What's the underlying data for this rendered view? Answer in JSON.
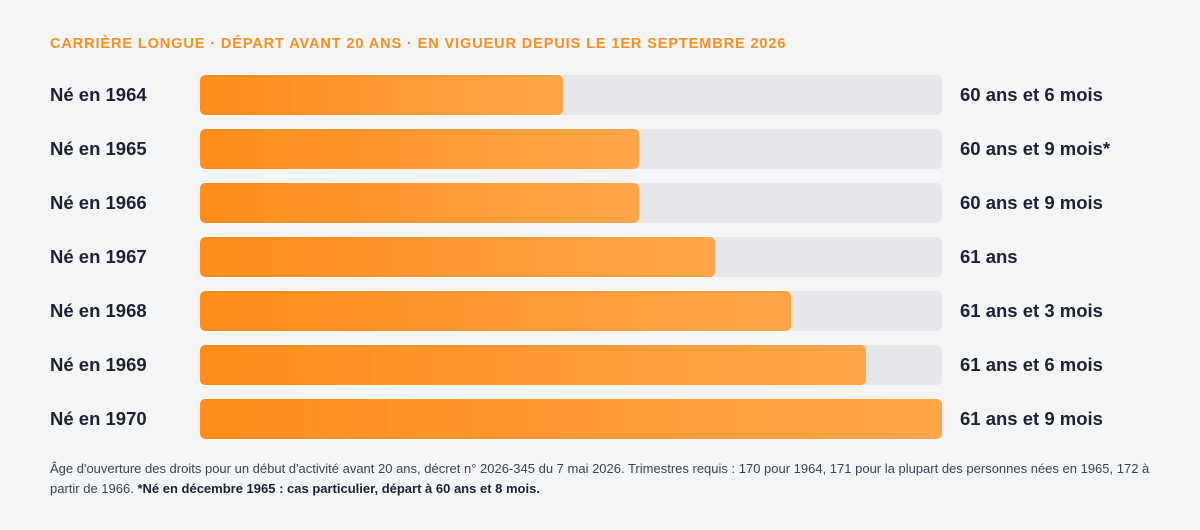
{
  "chart_data": {
    "type": "bar",
    "orientation": "horizontal",
    "title": "CARRIÈRE LONGUE · DÉPART AVANT 20 ANS · EN VIGUEUR DEPUIS LE 1ER SEPTEMBRE 2026",
    "categories": [
      "Né en 1964",
      "Né en 1965",
      "Né en 1966",
      "Né en 1967",
      "Né en 1968",
      "Né en 1969",
      "Né en 1970"
    ],
    "value_labels": [
      "60 ans et 6 mois",
      "60 ans et 9 mois*",
      "60 ans et 9 mois",
      "61 ans",
      "61 ans et 3 mois",
      "61 ans et 6 mois",
      "61 ans et 9 mois"
    ],
    "values_months": [
      726,
      729,
      729,
      732,
      735,
      738,
      741
    ],
    "xlim_months": [
      720,
      741
    ],
    "grid": false,
    "colors": {
      "bar_start": "#ff8c1a",
      "bar_end": "#ffa64a",
      "track": "#e6e7eb",
      "title": "#f7901e"
    }
  },
  "footnote": {
    "text": "Âge d'ouverture des droits pour un début d'activité avant 20 ans, décret n° 2026-345 du 7 mai 2026. Trimestres requis : 170 pour 1964, 171 pour la plupart des personnes nées en 1965, 172 à partir de 1966. ",
    "bold": "*Né en décembre 1965 : cas particulier, départ à 60 ans et 8 mois."
  }
}
